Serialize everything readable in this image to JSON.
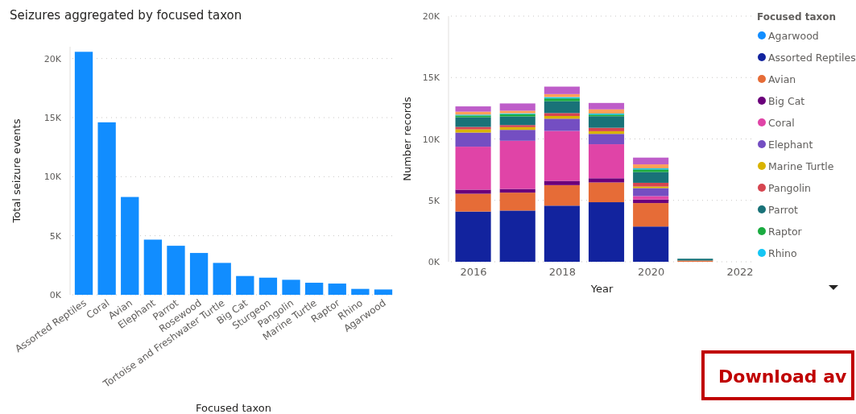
{
  "chart_data": [
    {
      "type": "bar",
      "title": "Seizures aggregated by focused taxon",
      "xlabel": "Focused taxon",
      "ylabel": "Total seizure events",
      "categories": [
        "Assorted Reptiles",
        "Coral",
        "Avian",
        "Elephant",
        "Parrot",
        "Rosewood",
        "Tortoise and Freshwater Turtle",
        "Big Cat",
        "Sturgeon",
        "Pangolin",
        "Marine Turtle",
        "Raptor",
        "Rhino",
        "Agarwood"
      ],
      "values": [
        20570,
        14600,
        8280,
        4670,
        4150,
        3540,
        2700,
        1590,
        1450,
        1270,
        1020,
        950,
        500,
        450
      ],
      "color": "#118dff",
      "ylim": [
        0,
        21000
      ],
      "yticks": [
        {
          "value": 0,
          "label": "0K"
        },
        {
          "value": 5000,
          "label": "5K"
        },
        {
          "value": 10000,
          "label": "10K"
        },
        {
          "value": 15000,
          "label": "15K"
        },
        {
          "value": 20000,
          "label": "20K"
        }
      ],
      "grid": "y"
    },
    {
      "type": "bar",
      "stacked": true,
      "xlabel": "Year",
      "ylabel": "Number records",
      "legend_title": "Focused taxon",
      "legend": "right",
      "grid": "y",
      "x": [
        2016,
        2017,
        2018,
        2019,
        2020,
        2021
      ],
      "xlim": [
        2015.5,
        2022.3
      ],
      "xticks": [
        2016,
        2018,
        2020,
        2022
      ],
      "ylim": [
        0,
        20000
      ],
      "yticks": [
        {
          "value": 0,
          "label": "0K"
        },
        {
          "value": 5000,
          "label": "5K"
        },
        {
          "value": 10000,
          "label": "10K"
        },
        {
          "value": 15000,
          "label": "15K"
        },
        {
          "value": 20000,
          "label": "20K"
        }
      ],
      "series": [
        {
          "name": "Agarwood",
          "color": "#118dff",
          "values": [
            null,
            null,
            null,
            null,
            null,
            null
          ]
        },
        {
          "name": "Assorted Reptiles",
          "color": "#12239e",
          "values": [
            4090,
            4170,
            4570,
            4850,
            2870,
            null
          ]
        },
        {
          "name": "Avian",
          "color": "#e66c37",
          "values": [
            1450,
            1460,
            1670,
            1610,
            1910,
            100
          ]
        },
        {
          "name": "Big Cat",
          "color": "#6b007b",
          "values": [
            330,
            300,
            350,
            340,
            290,
            null
          ]
        },
        {
          "name": "Coral",
          "color": "#e044a7",
          "values": [
            3500,
            3920,
            4060,
            2770,
            280,
            null
          ]
        },
        {
          "name": "Elephant",
          "color": "#744ec2",
          "values": [
            1150,
            890,
            1000,
            840,
            650,
            null
          ]
        },
        {
          "name": "Marine Turtle",
          "color": "#d9b300",
          "values": [
            260,
            220,
            220,
            220,
            130,
            null
          ]
        },
        {
          "name": "Pangolin",
          "color": "#d64550",
          "values": [
            200,
            170,
            240,
            280,
            300,
            null
          ]
        },
        {
          "name": "Parrot",
          "color": "#197278",
          "values": [
            780,
            700,
            960,
            940,
            870,
            150
          ]
        },
        {
          "name": "Raptor",
          "color": "#1aab40",
          "values": [
            150,
            190,
            230,
            130,
            220,
            null
          ]
        },
        {
          "name": "Rhino",
          "color": "#15c6f4",
          "values": [
            70,
            70,
            110,
            90,
            90,
            null
          ]
        },
        {
          "color": "#ffa058",
          "values": [
            240,
            210,
            240,
            340,
            320,
            null
          ]
        },
        {
          "color": "#be5dc9",
          "values": [
            430,
            590,
            610,
            520,
            550,
            null
          ]
        }
      ],
      "annotations": [
        "Download av"
      ]
    }
  ]
}
